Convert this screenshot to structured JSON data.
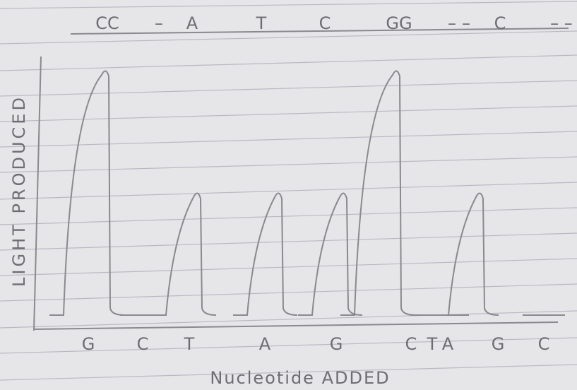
{
  "chart_data": {
    "type": "pyrogram",
    "top_labels": [
      "CC",
      "–",
      "A",
      "T",
      "C",
      "GG",
      "–",
      "–",
      "C",
      "– –"
    ],
    "categories": [
      "G",
      "C",
      "T",
      "A",
      "G",
      "C",
      "T",
      "A",
      "G",
      "C"
    ],
    "values": [
      2,
      0,
      1,
      1,
      1,
      2,
      0,
      0,
      1,
      0
    ],
    "ylim": [
      0,
      2
    ],
    "y_label": "LIGHT PRODUCED",
    "x_label": "Nucleotide ADDED",
    "color": "#8a8a8e"
  }
}
